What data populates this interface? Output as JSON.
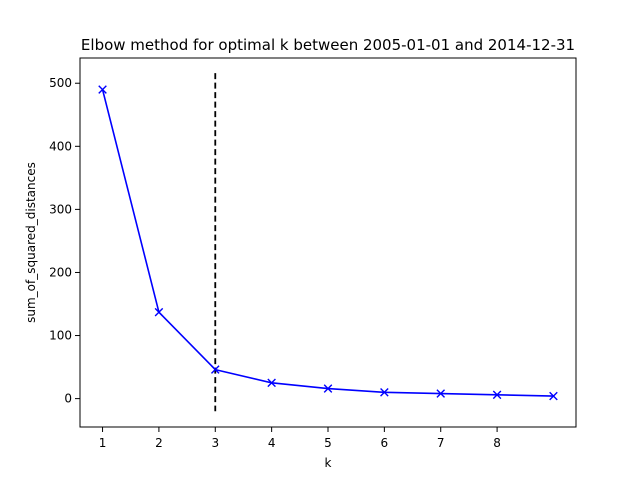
{
  "chart_data": {
    "type": "line",
    "title": "Elbow method for optimal k between 2005-01-01 and 2014-12-31",
    "xlabel": "k",
    "ylabel": "sum_of_squared_distances",
    "x": [
      1,
      2,
      3,
      4,
      5,
      6,
      7,
      8,
      9
    ],
    "series": [
      {
        "values": [
          490,
          137,
          46,
          25,
          16,
          10,
          8,
          6,
          4
        ],
        "color": "#0000ff",
        "marker": "x"
      }
    ],
    "xticks": [
      1,
      2,
      3,
      4,
      5,
      6,
      7,
      8
    ],
    "yticks": [
      0,
      100,
      200,
      300,
      400,
      500
    ],
    "xlim": [
      0.6,
      9.4
    ],
    "ylim": [
      -45,
      540
    ],
    "vline": {
      "x": 3,
      "ymin": -20,
      "ymax": 516,
      "style": "dashed",
      "color": "#000000"
    },
    "grid": false,
    "legend": "none"
  }
}
